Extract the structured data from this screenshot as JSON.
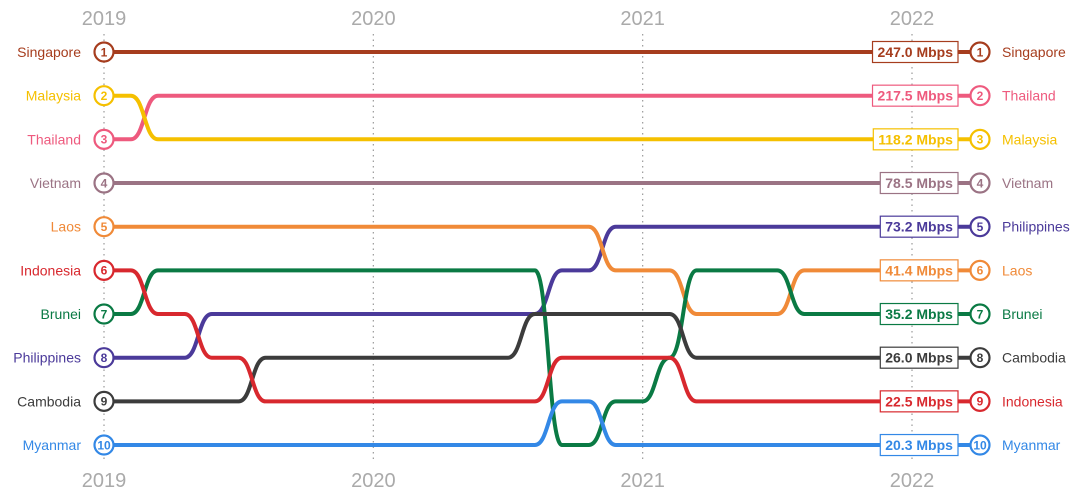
{
  "chart_data": {
    "type": "line",
    "subtype": "bump",
    "title": "",
    "xlabel": "",
    "ylabel": "",
    "years": [
      "2019",
      "2020",
      "2021",
      "2022"
    ],
    "x_start": 2019,
    "x_end": 2022,
    "rank_range": [
      1,
      10
    ],
    "grid": true,
    "unit": "Mbps",
    "series": [
      {
        "name": "Singapore",
        "color": "#a63d1e",
        "ranks": [
          1,
          1,
          1,
          1
        ],
        "value_label": "247.0 Mbps"
      },
      {
        "name": "Thailand",
        "color": "#ee5a7e",
        "ranks": [
          3,
          2,
          2,
          2
        ],
        "value_label": "217.5 Mbps"
      },
      {
        "name": "Malaysia",
        "color": "#f5c000",
        "ranks": [
          2,
          3,
          3,
          3
        ],
        "value_label": "118.2 Mbps"
      },
      {
        "name": "Vietnam",
        "color": "#9b7384",
        "ranks": [
          4,
          4,
          4,
          4
        ],
        "value_label": "78.5 Mbps"
      },
      {
        "name": "Philippines",
        "color": "#4b3a9a",
        "ranks": [
          8,
          7,
          5,
          5
        ],
        "value_label": "73.2 Mbps"
      },
      {
        "name": "Laos",
        "color": "#f08a38",
        "ranks": [
          5,
          5,
          6,
          6
        ],
        "value_label": "41.4 Mbps"
      },
      {
        "name": "Brunei",
        "color": "#0a7a44",
        "ranks": [
          7,
          6,
          9,
          7
        ],
        "value_label": "35.2 Mbps"
      },
      {
        "name": "Cambodia",
        "color": "#3c3c3c",
        "ranks": [
          9,
          8,
          7,
          8
        ],
        "value_label": "26.0 Mbps"
      },
      {
        "name": "Indonesia",
        "color": "#d8282e",
        "ranks": [
          6,
          9,
          8,
          9
        ],
        "value_label": "22.5 Mbps"
      },
      {
        "name": "Myanmar",
        "color": "#3388e6",
        "ranks": [
          10,
          10,
          10,
          10
        ],
        "value_label": "20.3 Mbps"
      }
    ],
    "rank_changes": [
      {
        "name": "Singapore",
        "points": [
          [
            2019.0,
            1
          ],
          [
            2022.0,
            1
          ]
        ]
      },
      {
        "name": "Thailand",
        "points": [
          [
            2019.0,
            3
          ],
          [
            2019.1,
            3
          ],
          [
            2019.2,
            2
          ],
          [
            2022.0,
            2
          ]
        ]
      },
      {
        "name": "Malaysia",
        "points": [
          [
            2019.0,
            2
          ],
          [
            2019.1,
            2
          ],
          [
            2019.2,
            3
          ],
          [
            2022.0,
            3
          ]
        ]
      },
      {
        "name": "Vietnam",
        "points": [
          [
            2019.0,
            4
          ],
          [
            2022.0,
            4
          ]
        ]
      },
      {
        "name": "Philippines",
        "points": [
          [
            2019.0,
            8
          ],
          [
            2019.3,
            8
          ],
          [
            2019.4,
            7
          ],
          [
            2020.6,
            7
          ],
          [
            2020.7,
            6
          ],
          [
            2020.8,
            6
          ],
          [
            2020.9,
            5
          ],
          [
            2022.0,
            5
          ]
        ]
      },
      {
        "name": "Laos",
        "points": [
          [
            2019.0,
            5
          ],
          [
            2020.8,
            5
          ],
          [
            2020.9,
            6
          ],
          [
            2021.1,
            6
          ],
          [
            2021.2,
            7
          ],
          [
            2021.5,
            7
          ],
          [
            2021.6,
            6
          ],
          [
            2022.0,
            6
          ]
        ]
      },
      {
        "name": "Brunei",
        "points": [
          [
            2019.0,
            7
          ],
          [
            2019.1,
            7
          ],
          [
            2019.2,
            6
          ],
          [
            2020.6,
            6
          ],
          [
            2020.7,
            10
          ],
          [
            2020.8,
            10
          ],
          [
            2020.9,
            9
          ],
          [
            2021.0,
            9
          ],
          [
            2021.1,
            8
          ],
          [
            2021.2,
            6
          ],
          [
            2021.5,
            6
          ],
          [
            2021.6,
            7
          ],
          [
            2022.0,
            7
          ]
        ]
      },
      {
        "name": "Cambodia",
        "points": [
          [
            2019.0,
            9
          ],
          [
            2019.5,
            9
          ],
          [
            2019.6,
            8
          ],
          [
            2020.5,
            8
          ],
          [
            2020.6,
            7
          ],
          [
            2021.1,
            7
          ],
          [
            2021.2,
            8
          ],
          [
            2022.0,
            8
          ]
        ]
      },
      {
        "name": "Indonesia",
        "points": [
          [
            2019.0,
            6
          ],
          [
            2019.1,
            6
          ],
          [
            2019.2,
            7
          ],
          [
            2019.3,
            7
          ],
          [
            2019.4,
            8
          ],
          [
            2019.5,
            8
          ],
          [
            2019.6,
            9
          ],
          [
            2020.6,
            9
          ],
          [
            2020.7,
            8
          ],
          [
            2021.1,
            8
          ],
          [
            2021.2,
            9
          ],
          [
            2022.0,
            9
          ]
        ]
      },
      {
        "name": "Myanmar",
        "points": [
          [
            2019.0,
            10
          ],
          [
            2020.6,
            10
          ],
          [
            2020.7,
            9
          ],
          [
            2020.8,
            9
          ],
          [
            2020.9,
            10
          ],
          [
            2022.0,
            10
          ]
        ]
      }
    ]
  }
}
